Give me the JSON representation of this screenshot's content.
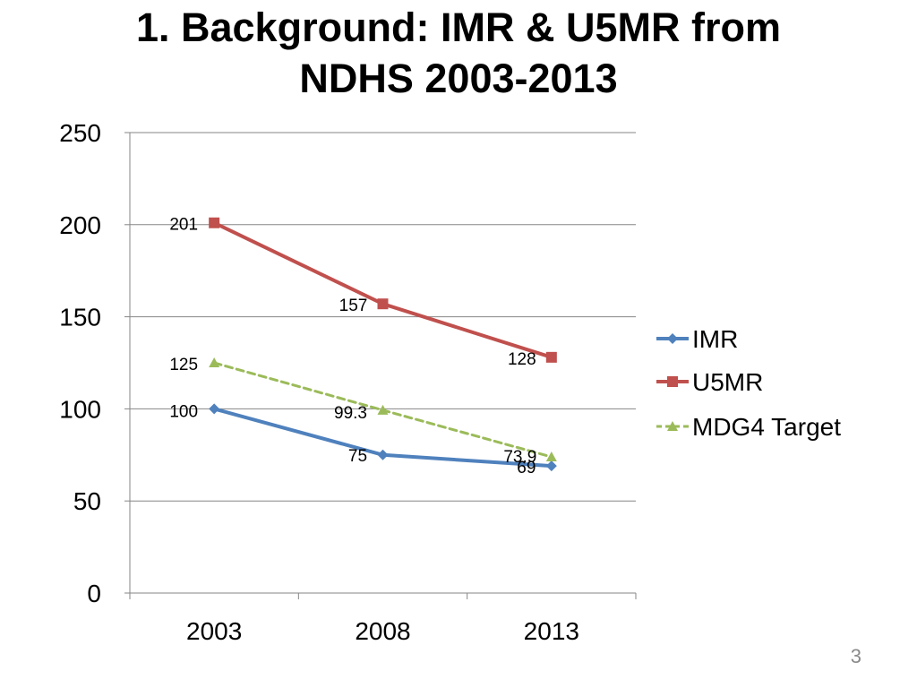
{
  "slide": {
    "title_line1": "1. Background: IMR & U5MR from",
    "title_line2": "NDHS 2003-2013",
    "page_number": "3"
  },
  "chart_data": {
    "type": "line",
    "categories": [
      "2003",
      "2008",
      "2013"
    ],
    "ylim": [
      0,
      250
    ],
    "yticks": [
      0,
      50,
      100,
      150,
      200,
      250
    ],
    "grid": true,
    "legend_position": "right",
    "series": [
      {
        "name": "IMR",
        "values": [
          100,
          75,
          69
        ],
        "labels": [
          "100",
          "75",
          "69"
        ],
        "color": "#4F81BD",
        "marker": "diamond",
        "dash": "solid"
      },
      {
        "name": "U5MR",
        "values": [
          201,
          157,
          128
        ],
        "labels": [
          "201",
          "157",
          "128"
        ],
        "color": "#C0504D",
        "marker": "square",
        "dash": "solid"
      },
      {
        "name": "MDG4 Target",
        "values": [
          125,
          99.3,
          73.9
        ],
        "labels": [
          "125",
          "99.3",
          "73.9"
        ],
        "color": "#9BBB59",
        "marker": "triangle",
        "dash": "dashed"
      }
    ]
  }
}
